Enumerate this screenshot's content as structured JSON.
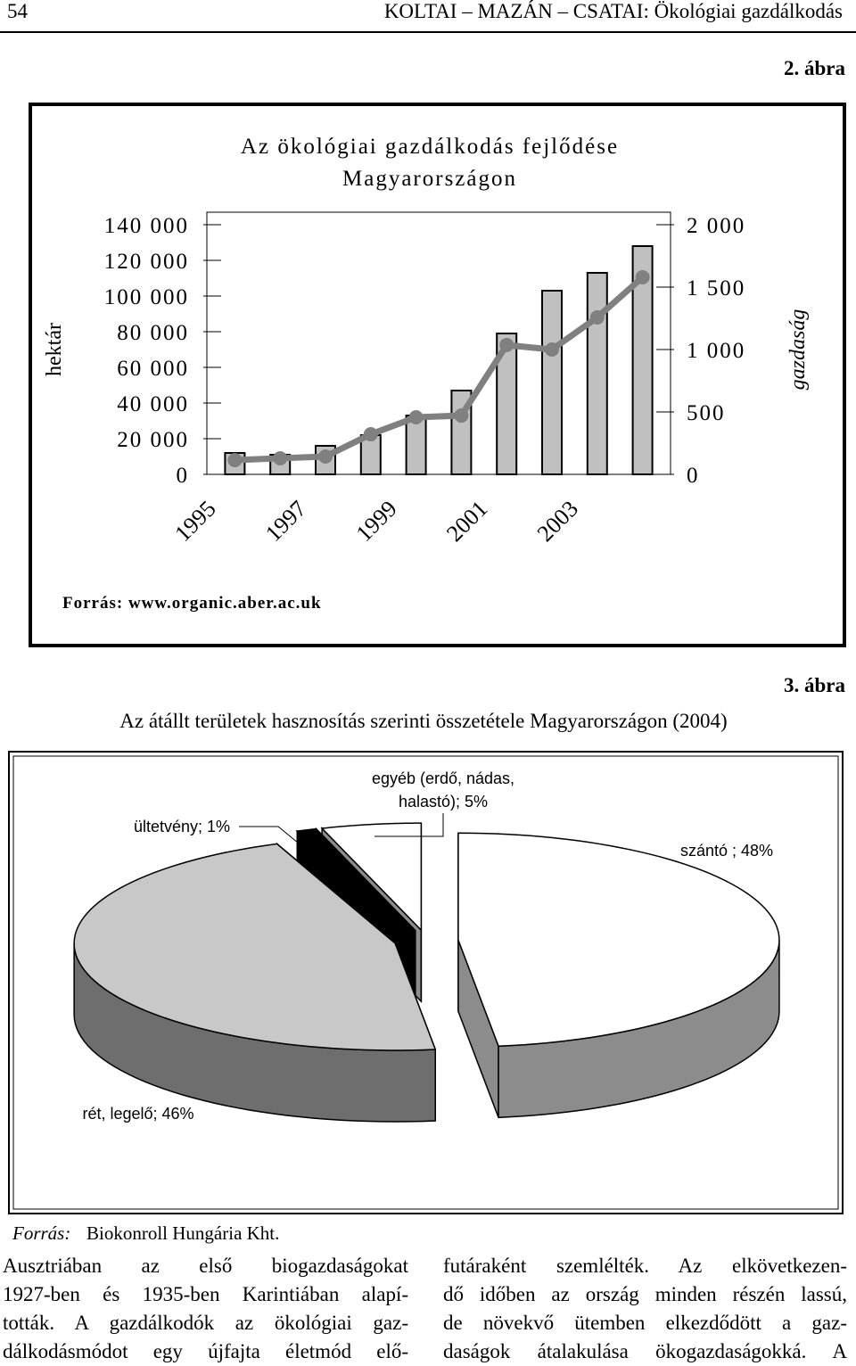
{
  "header": {
    "page_number": "54",
    "running_title": "KOLTAI – MAZÁN – CSATAI: Ökológiai gazdálkodás"
  },
  "chart_data": [
    {
      "type": "bar",
      "figure_label": "2. ábra",
      "title": [
        "Az ökológiai gazdálkodás fejlődése",
        "Magyarországon"
      ],
      "categories": [
        "1995",
        null,
        "1997",
        null,
        "1999",
        null,
        "2001",
        null,
        "2003",
        null
      ],
      "series": [
        {
          "type": "bar",
          "color": "#c0c0c0",
          "values": [
            12000,
            11000,
            16000,
            22000,
            33000,
            47000,
            79000,
            103000,
            113000,
            128000
          ]
        },
        {
          "type": "line",
          "axis": "y2",
          "color": "#808080",
          "values": [
            114,
            129,
            143,
            321,
            457,
            471,
            1036,
            1000,
            1257,
            1579
          ]
        }
      ],
      "ylabel": "hektár",
      "y2label": "gazdaság",
      "ylim": [
        0,
        140000
      ],
      "yticks": [
        0,
        {
          "value": 20000,
          "label": "20 000"
        },
        {
          "value": 40000,
          "label": "40 000"
        },
        {
          "value": 60000,
          "label": "60 000"
        },
        {
          "value": 80000,
          "label": "80 000"
        },
        {
          "value": 100000,
          "label": "100 000"
        },
        {
          "value": 120000,
          "label": "120 000"
        },
        {
          "value": 140000,
          "label": "140 000"
        }
      ],
      "y2lim": [
        0,
        2000
      ],
      "y2ticks": [
        0,
        500,
        {
          "value": 1000,
          "label": "1 000"
        },
        {
          "value": 1500,
          "label": "1 500"
        },
        {
          "value": 2000,
          "label": "2 000"
        }
      ],
      "source": "Forrás: www.organic.aber.ac.uk"
    },
    {
      "type": "pie",
      "figure_label": "3. ábra",
      "title": "Az átállt területek hasznosítás szerinti összetétele Magyarországon (2004)",
      "values": [
        48,
        46,
        1,
        5
      ],
      "value_labels": [
        "szántó ; 48%",
        "rét, legelő; 46%",
        "ültetvény; 1%",
        "egyéb (erdő, nádas, halastó); 5%"
      ],
      "colors": [
        "#ffffff",
        "#c8c8c8",
        "#000000",
        "#ffffff"
      ],
      "source": {
        "label": "Forrás:",
        "text": "Biokonroll Hungária Kht."
      }
    }
  ],
  "body": {
    "left_column": [
      "Ausztriában az első biogazdaságokat",
      "1927-ben és 1935-ben Karintiában alapí-",
      "tották. A gazdálkodók az ökológiai gaz-",
      "dálkodásmódot egy újfajta életmód elő-"
    ],
    "right_column": [
      "futáraként szemlélték. Az elkövetkezen-",
      "dő időben az ország minden részén lassú,",
      "de növekvő ütemben elkezdődött a gaz-",
      "daságok átalakulása ökogazdaságokká. A"
    ]
  }
}
